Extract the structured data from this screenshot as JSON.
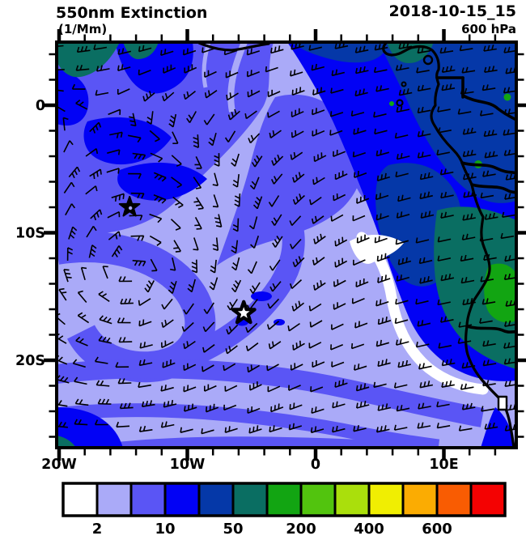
{
  "header": {
    "title": "550nm Extinction",
    "units": "(1/Mm)",
    "datetime": "2018-10-15_15",
    "level": "600 hPa"
  },
  "map": {
    "x_axis": {
      "tick_labels": [
        "20W",
        "10W",
        "0",
        "10E"
      ],
      "tick_lons": [
        -20,
        -10,
        0,
        10
      ],
      "minor_step_deg": 2
    },
    "y_axis": {
      "tick_labels": [
        "0",
        "10S",
        "20S"
      ],
      "tick_lats": [
        0,
        -10,
        -20
      ],
      "minor_step_deg": 2
    },
    "markers": [
      {
        "name": "star-marker-filled",
        "lon": -14.5,
        "lat": -8.0
      },
      {
        "name": "star-marker-open",
        "lon": -5.6,
        "lat": -16.3
      }
    ]
  },
  "colorbar": {
    "labels": [
      "2",
      "10",
      "50",
      "200",
      "400",
      "600"
    ],
    "colors": [
      "#ffffff",
      "#aaaaf8",
      "#5a55f5",
      "#0202f5",
      "#0538a8",
      "#0a6e62",
      "#12a512",
      "#52c40e",
      "#aadf0c",
      "#f0ee02",
      "#fbac02",
      "#f95c02",
      "#f40202"
    ]
  }
}
